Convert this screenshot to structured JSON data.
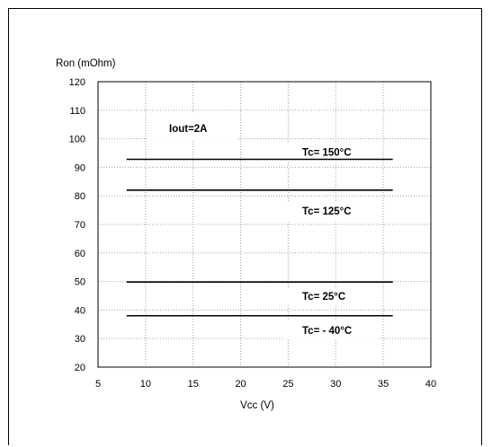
{
  "chart_data": {
    "type": "line",
    "xlabel": "Vcc (V)",
    "ylabel": "Ron (mOhm)",
    "xlim": [
      5,
      40
    ],
    "ylim": [
      20,
      120
    ],
    "xticks": [
      5,
      10,
      15,
      20,
      25,
      30,
      35,
      40
    ],
    "yticks": [
      20,
      30,
      40,
      50,
      60,
      70,
      80,
      90,
      100,
      110,
      120
    ],
    "grid": true,
    "x": [
      8,
      36
    ],
    "series": [
      {
        "name": "Tc= 150°C",
        "values": [
          92.8,
          92.8
        ]
      },
      {
        "name": "Tc= 125°C",
        "values": [
          82,
          82
        ]
      },
      {
        "name": "Tc= 25°C",
        "values": [
          49.8,
          49.8
        ]
      },
      {
        "name": "Tc= - 40°C",
        "values": [
          38,
          38
        ]
      }
    ],
    "annotations": [
      {
        "text": "Iout=2A"
      }
    ]
  }
}
